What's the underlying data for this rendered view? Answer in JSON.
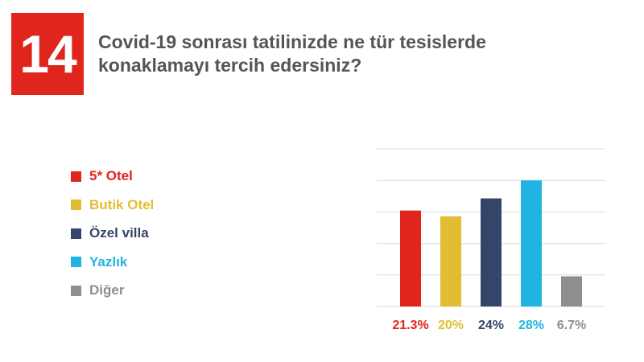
{
  "header": {
    "number": "14",
    "title_line1": "Covid-19 sonrası tatilinizde ne tür tesislerde",
    "title_line2": "konaklamayı tercih edersiniz?"
  },
  "colors": {
    "brand_red": "#e0251d",
    "title_gray": "#555555",
    "grid": "#dcdcdc"
  },
  "chart_data": {
    "type": "bar",
    "title": "Covid-19 sonrası tatilinizde ne tür tesislerde konaklamayı tercih edersiniz?",
    "categories": [
      "5* Otel",
      "Butik Otel",
      "Özel villa",
      "Yazlık",
      "Diğer"
    ],
    "values": [
      21.3,
      20,
      24,
      28,
      6.7
    ],
    "value_labels": [
      "21.3%",
      "20%",
      "24%",
      "28%",
      "6.7%"
    ],
    "colors": [
      "#e0251d",
      "#e2bd33",
      "#34456a",
      "#21b4e2",
      "#8e8e8e"
    ],
    "ylim": [
      0,
      35
    ],
    "grid": true,
    "legend": "left"
  }
}
